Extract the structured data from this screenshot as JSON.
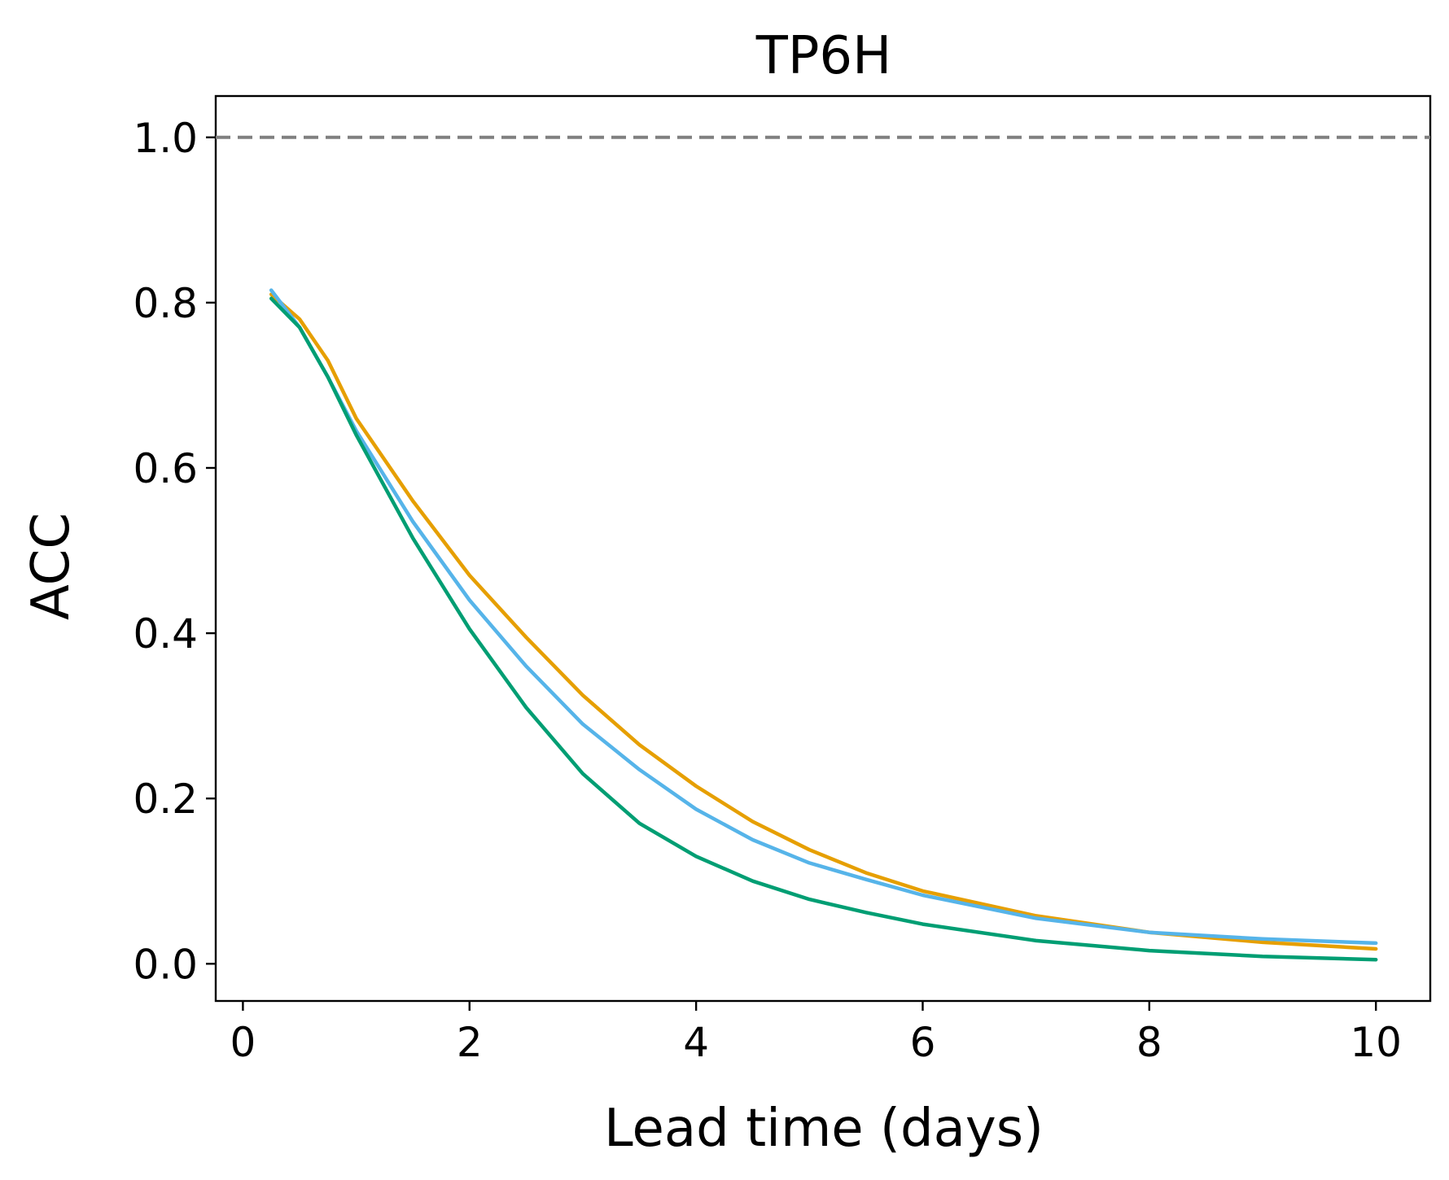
{
  "chart_data": {
    "type": "line",
    "title": "TP6H",
    "xlabel": "Lead time (days)",
    "ylabel": "ACC",
    "xlim": [
      -0.24,
      10.48
    ],
    "ylim": [
      -0.045,
      1.05
    ],
    "xticks": [
      0,
      2,
      4,
      6,
      8,
      10
    ],
    "yticks": [
      0.0,
      0.2,
      0.4,
      0.6,
      0.8,
      1.0
    ],
    "xtick_labels": [
      "0",
      "2",
      "4",
      "6",
      "8",
      "10"
    ],
    "ytick_labels": [
      "0.0",
      "0.2",
      "0.4",
      "0.6",
      "0.8",
      "1.0"
    ],
    "grid": false,
    "reference_line": {
      "y": 1.0,
      "style": "dashed",
      "color": "#808080"
    },
    "x": [
      0.25,
      0.5,
      0.75,
      1.0,
      1.5,
      2.0,
      2.5,
      3.0,
      3.5,
      4.0,
      4.5,
      5.0,
      5.5,
      6.0,
      7.0,
      8.0,
      9.0,
      10.0
    ],
    "series": [
      {
        "color": "#E69F00",
        "values": [
          0.81,
          0.78,
          0.73,
          0.66,
          0.56,
          0.47,
          0.395,
          0.325,
          0.265,
          0.215,
          0.172,
          0.138,
          0.11,
          0.088,
          0.058,
          0.038,
          0.026,
          0.018
        ]
      },
      {
        "color": "#56B4E9",
        "values": [
          0.815,
          0.77,
          0.71,
          0.645,
          0.535,
          0.44,
          0.36,
          0.29,
          0.235,
          0.187,
          0.15,
          0.122,
          0.102,
          0.083,
          0.055,
          0.038,
          0.03,
          0.025
        ]
      },
      {
        "color": "#009E73",
        "values": [
          0.805,
          0.77,
          0.71,
          0.64,
          0.515,
          0.405,
          0.31,
          0.23,
          0.17,
          0.13,
          0.1,
          0.078,
          0.062,
          0.048,
          0.028,
          0.016,
          0.009,
          0.005
        ]
      }
    ]
  }
}
